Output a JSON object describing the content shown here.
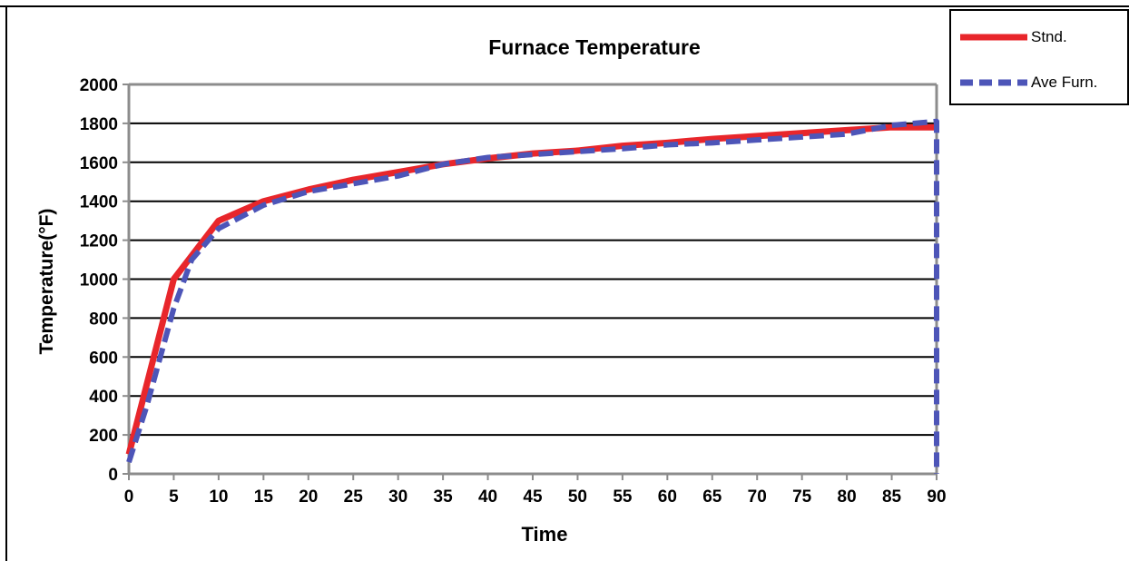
{
  "chart_data": {
    "type": "line",
    "title": "Furnace Temperature",
    "xlabel": "Time",
    "ylabel": "Temperature(°F)",
    "xlim": [
      0,
      90
    ],
    "ylim": [
      0,
      2000
    ],
    "x_ticks": [
      0,
      5,
      10,
      15,
      20,
      25,
      30,
      35,
      40,
      45,
      50,
      55,
      60,
      65,
      70,
      75,
      80,
      85,
      90
    ],
    "y_ticks": [
      0,
      200,
      400,
      600,
      800,
      1000,
      1200,
      1400,
      1600,
      1800,
      2000
    ],
    "grid": "horizontal",
    "legend_position": "top-right",
    "series": [
      {
        "name": "Stnd.",
        "color": "#e8262b",
        "style": "solid",
        "points": [
          [
            0,
            100
          ],
          [
            5,
            1000
          ],
          [
            10,
            1300
          ],
          [
            15,
            1400
          ],
          [
            20,
            1460
          ],
          [
            25,
            1510
          ],
          [
            30,
            1550
          ],
          [
            35,
            1590
          ],
          [
            40,
            1620
          ],
          [
            45,
            1645
          ],
          [
            50,
            1660
          ],
          [
            55,
            1685
          ],
          [
            60,
            1700
          ],
          [
            65,
            1720
          ],
          [
            70,
            1735
          ],
          [
            75,
            1750
          ],
          [
            80,
            1765
          ],
          [
            85,
            1780
          ],
          [
            90,
            1780
          ]
        ]
      },
      {
        "name": "Ave Furn.",
        "color": "#4d55b8",
        "style": "dashed",
        "points": [
          [
            0,
            60
          ],
          [
            2,
            350
          ],
          [
            5,
            850
          ],
          [
            7,
            1100
          ],
          [
            10,
            1260
          ],
          [
            15,
            1380
          ],
          [
            20,
            1450
          ],
          [
            25,
            1490
          ],
          [
            30,
            1530
          ],
          [
            35,
            1590
          ],
          [
            40,
            1625
          ],
          [
            45,
            1640
          ],
          [
            50,
            1655
          ],
          [
            55,
            1670
          ],
          [
            60,
            1690
          ],
          [
            65,
            1700
          ],
          [
            70,
            1715
          ],
          [
            75,
            1730
          ],
          [
            80,
            1745
          ],
          [
            85,
            1790
          ],
          [
            90,
            1810
          ],
          [
            90,
            0
          ]
        ]
      }
    ]
  }
}
